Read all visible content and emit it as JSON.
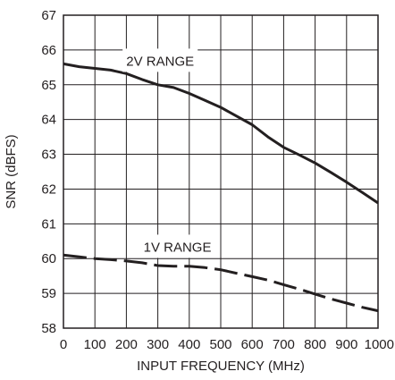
{
  "chart_data": {
    "type": "line",
    "xlabel": "INPUT FREQUENCY (MHz)",
    "ylabel": "SNR (dBFS)",
    "xlim": [
      0,
      1000
    ],
    "ylim": [
      58,
      67
    ],
    "xticks": [
      0,
      100,
      200,
      300,
      400,
      500,
      600,
      700,
      800,
      900,
      1000
    ],
    "yticks": [
      58,
      59,
      60,
      61,
      62,
      63,
      64,
      65,
      66,
      67
    ],
    "grid": true,
    "legend": "none",
    "series": [
      {
        "name": "2V RANGE",
        "line_style": "solid",
        "x": [
          0,
          50,
          100,
          150,
          200,
          250,
          300,
          350,
          400,
          450,
          500,
          550,
          600,
          650,
          700,
          750,
          800,
          850,
          900,
          950,
          1000
        ],
        "y": [
          65.6,
          65.52,
          65.47,
          65.42,
          65.32,
          65.15,
          65.0,
          64.92,
          64.75,
          64.55,
          64.35,
          64.1,
          63.85,
          63.5,
          63.2,
          62.98,
          62.75,
          62.48,
          62.2,
          61.9,
          61.6
        ]
      },
      {
        "name": "1V RANGE",
        "line_style": "dashed",
        "x": [
          0,
          50,
          100,
          150,
          200,
          250,
          300,
          350,
          400,
          450,
          500,
          550,
          600,
          650,
          700,
          750,
          800,
          850,
          900,
          950,
          1000
        ],
        "y": [
          60.1,
          60.05,
          60.0,
          59.97,
          59.93,
          59.88,
          59.8,
          59.78,
          59.78,
          59.74,
          59.68,
          59.58,
          59.48,
          59.38,
          59.25,
          59.12,
          58.98,
          58.84,
          58.72,
          58.6,
          58.5
        ]
      }
    ],
    "annotations": [
      {
        "text": "2V RANGE",
        "x": 225,
        "y": 65.55
      },
      {
        "text": "1V RANGE",
        "x": 280,
        "y": 60.2
      }
    ]
  }
}
